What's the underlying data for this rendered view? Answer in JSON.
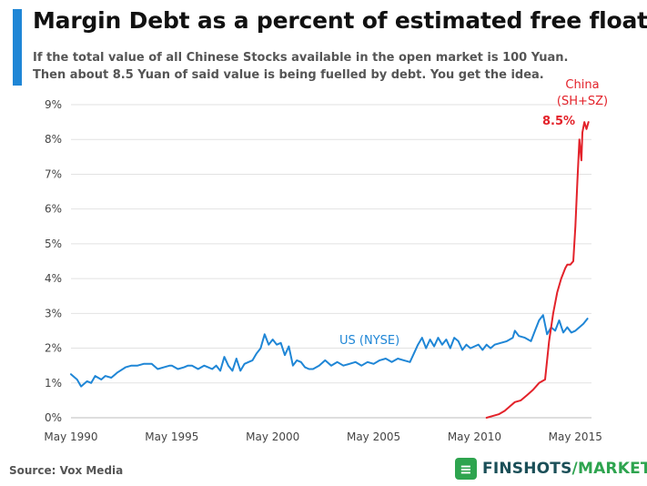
{
  "header": {
    "title": "Margin Debt as a percent of estimated free float",
    "subtitle_line1": "If the total value of all Chinese Stocks available in the open market is 100 Yuan.",
    "subtitle_line2": "Then about 8.5 Yuan of said value is being fuelled by debt. You get the idea."
  },
  "footer": {
    "source": "Source: Vox Media",
    "brand_main": "FINSHOTS",
    "brand_slash": "/",
    "brand_sub": "MARKETS",
    "brand_icon": "finshots-logo-icon"
  },
  "colors": {
    "us_series": "#1f86d6",
    "china_series": "#e3222a",
    "accent": "#1f86d6",
    "grid": "#e2e2e2"
  },
  "chart_data": {
    "type": "line",
    "title": "Margin Debt as a percent of estimated free float",
    "xlabel": "",
    "ylabel": "",
    "xlim": [
      1990.0,
      2015.8
    ],
    "ylim": [
      0,
      9
    ],
    "yticks": [
      "0%",
      "1%",
      "2%",
      "3%",
      "4%",
      "5%",
      "6%",
      "7%",
      "8%",
      "9%"
    ],
    "xticks": [
      {
        "x": 1990,
        "label": "May 1990"
      },
      {
        "x": 1995,
        "label": "May 1995"
      },
      {
        "x": 2000,
        "label": "May 2000"
      },
      {
        "x": 2005,
        "label": "May 2005"
      },
      {
        "x": 2010,
        "label": "May 2010"
      },
      {
        "x": 2015,
        "label": "May 2015"
      }
    ],
    "grid": "horizontal",
    "series": [
      {
        "name": "US (NYSE)",
        "label": "US (NYSE)",
        "color": "#1f86d6",
        "x": [
          1990.0,
          1990.3,
          1990.5,
          1990.8,
          1991.0,
          1991.2,
          1991.5,
          1991.7,
          1992.0,
          1992.3,
          1992.7,
          1993.0,
          1993.3,
          1993.6,
          1994.0,
          1994.3,
          1994.6,
          1994.9,
          1995.0,
          1995.3,
          1995.6,
          1995.8,
          1996.0,
          1996.3,
          1996.6,
          1996.8,
          1997.0,
          1997.2,
          1997.4,
          1997.6,
          1997.8,
          1998.0,
          1998.2,
          1998.4,
          1998.6,
          1998.8,
          1999.0,
          1999.2,
          1999.4,
          1999.6,
          1999.8,
          2000.0,
          2000.2,
          2000.4,
          2000.6,
          2000.8,
          2001.0,
          2001.2,
          2001.4,
          2001.6,
          2001.8,
          2002.0,
          2002.3,
          2002.6,
          2002.9,
          2003.2,
          2003.5,
          2003.8,
          2004.1,
          2004.4,
          2004.7,
          2005.0,
          2005.3,
          2005.6,
          2005.9,
          2006.2,
          2006.5,
          2006.8,
          2007.0,
          2007.2,
          2007.4,
          2007.6,
          2007.8,
          2008.0,
          2008.2,
          2008.4,
          2008.6,
          2008.8,
          2009.0,
          2009.2,
          2009.4,
          2009.6,
          2009.8,
          2010.0,
          2010.2,
          2010.4,
          2010.6,
          2010.8,
          2011.0,
          2011.3,
          2011.6,
          2011.9,
          2012.0,
          2012.2,
          2012.5,
          2012.8,
          2013.0,
          2013.2,
          2013.4,
          2013.6,
          2013.8,
          2014.0,
          2014.2,
          2014.4,
          2014.6,
          2014.8,
          2015.0,
          2015.2,
          2015.4,
          2015.6
        ],
        "y": [
          1.25,
          1.1,
          0.9,
          1.05,
          1.0,
          1.2,
          1.1,
          1.2,
          1.15,
          1.3,
          1.45,
          1.5,
          1.5,
          1.55,
          1.55,
          1.4,
          1.45,
          1.5,
          1.5,
          1.4,
          1.45,
          1.5,
          1.5,
          1.4,
          1.5,
          1.45,
          1.4,
          1.5,
          1.35,
          1.75,
          1.5,
          1.35,
          1.7,
          1.35,
          1.55,
          1.6,
          1.65,
          1.85,
          2.0,
          2.4,
          2.1,
          2.25,
          2.1,
          2.15,
          1.8,
          2.05,
          1.5,
          1.65,
          1.6,
          1.45,
          1.4,
          1.4,
          1.5,
          1.65,
          1.5,
          1.6,
          1.5,
          1.55,
          1.6,
          1.5,
          1.6,
          1.55,
          1.65,
          1.7,
          1.6,
          1.7,
          1.65,
          1.6,
          1.85,
          2.1,
          2.3,
          2.0,
          2.25,
          2.05,
          2.3,
          2.1,
          2.25,
          2.0,
          2.3,
          2.2,
          1.95,
          2.1,
          2.0,
          2.05,
          2.1,
          1.95,
          2.1,
          2.0,
          2.1,
          2.15,
          2.2,
          2.3,
          2.5,
          2.35,
          2.3,
          2.2,
          2.5,
          2.8,
          2.95,
          2.4,
          2.6,
          2.5,
          2.8,
          2.45,
          2.6,
          2.45,
          2.5,
          2.6,
          2.7,
          2.85
        ]
      },
      {
        "name": "China (SH+SZ)",
        "label_line1": "China",
        "label_line2": "(SH+SZ)",
        "end_label": "8.5%",
        "color": "#e3222a",
        "x": [
          2010.6,
          2010.9,
          2011.2,
          2011.5,
          2011.8,
          2012.0,
          2012.3,
          2012.6,
          2012.9,
          2013.2,
          2013.5,
          2013.7,
          2013.9,
          2014.1,
          2014.3,
          2014.5,
          2014.6,
          2014.75,
          2014.9,
          2015.0,
          2015.1,
          2015.2,
          2015.3,
          2015.35,
          2015.45,
          2015.55,
          2015.65
        ],
        "y": [
          0.0,
          0.05,
          0.1,
          0.2,
          0.35,
          0.45,
          0.5,
          0.65,
          0.8,
          1.0,
          1.1,
          2.2,
          3.0,
          3.6,
          4.0,
          4.3,
          4.4,
          4.4,
          4.5,
          5.5,
          6.8,
          8.0,
          7.4,
          8.2,
          8.5,
          8.3,
          8.5
        ]
      }
    ]
  }
}
